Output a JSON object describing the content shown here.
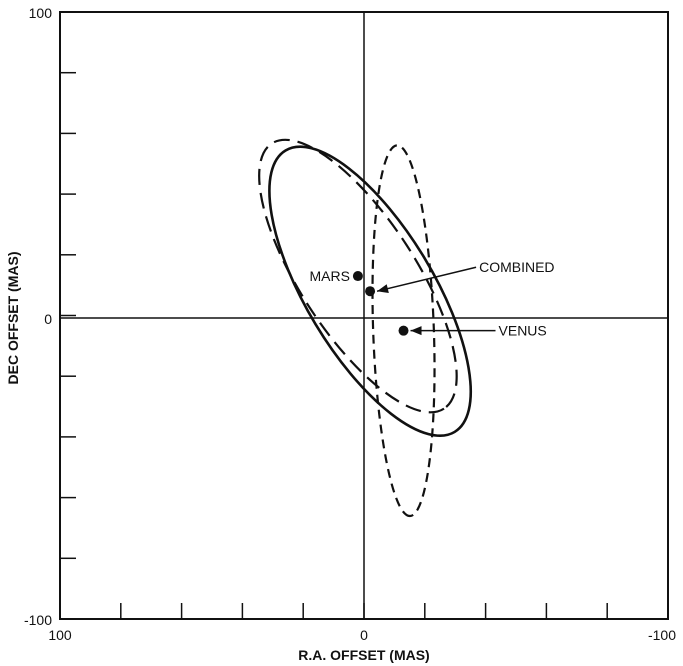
{
  "chart_data": {
    "type": "scatter",
    "xlabel": "R.A. OFFSET (MAS)",
    "ylabel": "DEC OFFSET (MAS)",
    "xlim": [
      100,
      -100
    ],
    "ylim": [
      -100,
      100
    ],
    "x_ticks": [
      100,
      80,
      60,
      40,
      20,
      0,
      -20,
      -40,
      -60,
      -80,
      -100
    ],
    "y_ticks": [
      -100,
      -80,
      -60,
      -40,
      -20,
      0,
      20,
      40,
      60,
      80,
      100
    ],
    "x_tick_labels": [
      "100",
      "0",
      "-100"
    ],
    "y_tick_labels": [
      "100",
      "0",
      "-100"
    ],
    "grid": false,
    "crosshair_at_origin": true,
    "points": [
      {
        "label": "MARS",
        "x": 2,
        "y": 13
      },
      {
        "label": "COMBINED",
        "x": -2,
        "y": 8
      },
      {
        "label": "VENUS",
        "x": -13,
        "y": -5
      }
    ],
    "error_ellipses": [
      {
        "series": "MARS",
        "style": "long-dash",
        "center": [
          2,
          13
        ],
        "semi_major": 52,
        "semi_minor": 19,
        "angle_deg": 57
      },
      {
        "series": "COMBINED",
        "style": "solid",
        "center": [
          -2,
          8
        ],
        "semi_major": 54,
        "semi_minor": 21,
        "angle_deg": 59
      },
      {
        "series": "VENUS",
        "style": "short-dash",
        "center": [
          -13,
          -5
        ],
        "semi_major": 61,
        "semi_minor": 10,
        "angle_deg": 88
      }
    ]
  }
}
